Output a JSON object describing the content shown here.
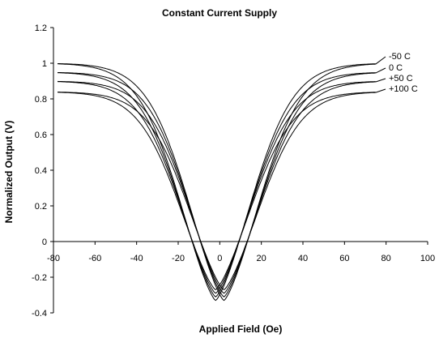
{
  "chart_data": {
    "type": "line",
    "title": "Constant Current Supply",
    "xlabel": "Applied Field (Oe)",
    "ylabel": "Normalized Output (V)",
    "xlim": [
      -80,
      100
    ],
    "ylim": [
      -0.4,
      1.2
    ],
    "x_ticks": [
      -80,
      -60,
      -40,
      -20,
      0,
      20,
      40,
      60,
      80,
      100
    ],
    "y_ticks": [
      -0.4,
      -0.2,
      0,
      0.2,
      0.4,
      0.6,
      0.8,
      1,
      1.2
    ],
    "x_tick_labels": [
      "-80",
      "-60",
      "-40",
      "-20",
      "0",
      "20",
      "40",
      "60",
      "80",
      "100"
    ],
    "y_tick_labels": [
      "-0.4",
      "-0.2",
      "0",
      "0.2",
      "0.4",
      "0.6",
      "0.8",
      "1",
      "1.2"
    ],
    "grid": false,
    "legend_placement": "right of series ends",
    "line_color": "#000000",
    "series": [
      {
        "name": "-50 C",
        "sat": 1.0,
        "min": -0.33
      },
      {
        "name": "0 C",
        "sat": 0.95,
        "min": -0.31
      },
      {
        "name": "+50 C",
        "sat": 0.9,
        "min": -0.29
      },
      {
        "name": "+100 C",
        "sat": 0.84,
        "min": -0.27
      }
    ],
    "sweep_offsets": [
      -2,
      2
    ]
  }
}
